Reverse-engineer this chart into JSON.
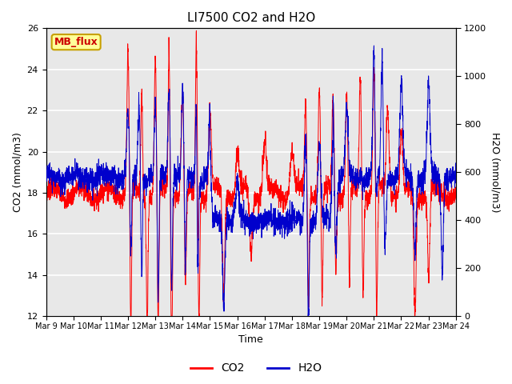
{
  "title": "LI7500 CO2 and H2O",
  "xlabel": "Time",
  "ylabel_left": "CO2 (mmol/m3)",
  "ylabel_right": "H2O (mmol/m3)",
  "co2_ylim": [
    12,
    26
  ],
  "h2o_ylim": [
    0,
    1200
  ],
  "co2_yticks": [
    12,
    14,
    16,
    18,
    20,
    22,
    24,
    26
  ],
  "h2o_yticks": [
    0,
    200,
    400,
    600,
    800,
    1000,
    1200
  ],
  "xtick_labels": [
    "Mar 9",
    "Mar 10",
    "Mar 11",
    "Mar 12",
    "Mar 13",
    "Mar 14",
    "Mar 15",
    "Mar 16",
    "Mar 17",
    "Mar 18",
    "Mar 19",
    "Mar 20",
    "Mar 21",
    "Mar 22",
    "Mar 23",
    "Mar 24"
  ],
  "co2_color": "#ff0000",
  "h2o_color": "#0000cc",
  "fig_bg_color": "#ffffff",
  "plot_bg_color": "#e8e8e8",
  "grid_color": "#ffffff",
  "annotation_text": "MB_flux",
  "annotation_bg": "#ffff99",
  "annotation_border": "#c8a000",
  "legend_co2": "CO2",
  "legend_h2o": "H2O",
  "title_fontsize": 11,
  "label_fontsize": 9,
  "tick_fontsize": 8,
  "legend_fontsize": 10,
  "n_points": 3000
}
